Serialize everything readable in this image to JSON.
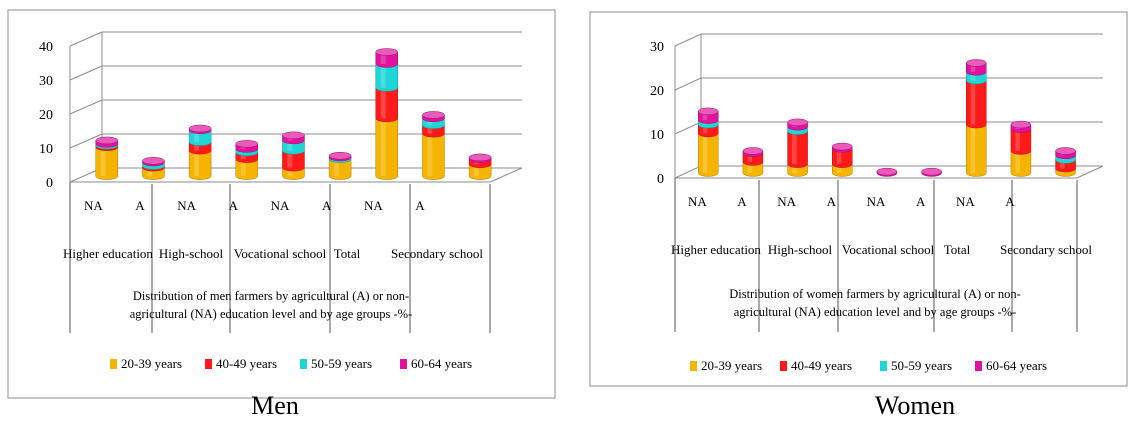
{
  "colors": {
    "c2039": "#f5b400",
    "c4049": "#ff1a1a",
    "c5059": "#1fd6d6",
    "c6064": "#e0139e"
  },
  "chart_data": [
    {
      "type": "bar",
      "stacked": true,
      "caption": "Men",
      "xlabel_line1": "Distribution of men farmers by agricultural (A) or non-",
      "xlabel_line2": "agricultural (NA)  education level and by age groups -%-",
      "categories": [
        "NA",
        "A",
        "NA",
        "A",
        "NA",
        "A",
        "NA",
        "A",
        ""
      ],
      "groups": [
        "Higher education",
        "High-school",
        "Vocational school",
        "Total",
        "Secondary school"
      ],
      "yticks": [
        "0",
        "10",
        "20",
        "30",
        "40"
      ],
      "ylim": [
        0,
        40
      ],
      "legend_position": "bottom",
      "series": [
        {
          "name": "20-39 years",
          "values": [
            8.5,
            2.5,
            7.5,
            5,
            2.5,
            5,
            17,
            12.5,
            3.5
          ]
        },
        {
          "name": "40-49 years",
          "values": [
            0.5,
            0.5,
            2.5,
            2,
            5,
            0,
            9,
            2.5,
            1.5
          ]
        },
        {
          "name": "50-59 years",
          "values": [
            0.5,
            1,
            3.5,
            1,
            3,
            0.5,
            7,
            2,
            0
          ]
        },
        {
          "name": "60-64 years",
          "values": [
            1,
            0.5,
            0.5,
            1.5,
            1.5,
            0.5,
            3.5,
            1,
            0.5
          ]
        }
      ]
    },
    {
      "type": "bar",
      "stacked": true,
      "caption": "Women",
      "xlabel_line1": "Distribution of women farmers by agricultural (A) or non-",
      "xlabel_line2": "agricultural (NA)  education level and by age groups -%-",
      "categories": [
        "NA",
        "A",
        "NA",
        "A",
        "NA",
        "A",
        "NA",
        "A",
        ""
      ],
      "groups": [
        "Higher education",
        "High-school",
        "Vocational school",
        "Total",
        "Secondary school"
      ],
      "yticks": [
        "0",
        "10",
        "20",
        "30"
      ],
      "ylim": [
        0,
        30
      ],
      "legend_position": "bottom",
      "series": [
        {
          "name": "20-39 years",
          "values": [
            9,
            2.5,
            2,
            2,
            0,
            0,
            11,
            5,
            1
          ]
        },
        {
          "name": "40-49 years",
          "values": [
            2,
            2,
            7.5,
            3.5,
            0,
            0,
            10,
            5,
            2
          ]
        },
        {
          "name": "50-59 years",
          "values": [
            1,
            0,
            1,
            0,
            0,
            0,
            2,
            0,
            1
          ]
        },
        {
          "name": "60-64 years",
          "values": [
            2,
            0.5,
            1,
            0.5,
            0.3,
            0.3,
            2,
            1,
            1
          ]
        }
      ]
    }
  ]
}
